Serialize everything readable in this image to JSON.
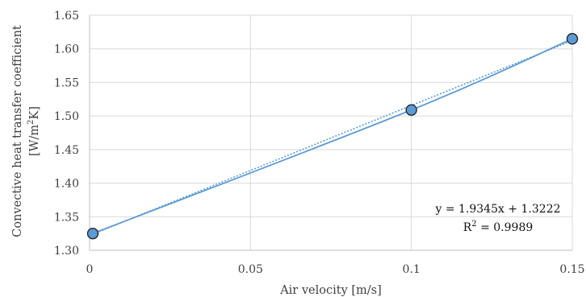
{
  "chart_data": {
    "type": "scatter",
    "series": [
      {
        "x": [
          0.001,
          0.1,
          0.15
        ],
        "y": [
          1.325,
          1.509,
          1.615
        ],
        "line": "smooth",
        "marker": "circle",
        "color": "#5b9bd5",
        "marker_edge_color": "#1f1f1f"
      }
    ],
    "trendline": {
      "type": "linear",
      "style": "dotted",
      "slope": 1.9345,
      "intercept": 1.3222,
      "equation_label": "y = 1.9345x + 1.3222",
      "r2_prefix": "R",
      "r2_sup": "2",
      "r2_suffix": " = 0.9989"
    },
    "xlabel": "Air velocity [m/s]",
    "ylabel_line1": "Convective heat transfer coefficient",
    "ylabel_line2_prefix": "[W/m",
    "ylabel_line2_sup": "2",
    "ylabel_line2_suffix": "K]",
    "xlim": [
      0,
      0.15
    ],
    "ylim": [
      1.3,
      1.65
    ],
    "x_ticks": [
      0,
      0.05,
      0.1,
      0.15
    ],
    "x_tick_labels": [
      "0",
      "0.05",
      "0.1",
      "0.15"
    ],
    "y_ticks": [
      1.3,
      1.35,
      1.4,
      1.45,
      1.5,
      1.55,
      1.6,
      1.65
    ],
    "y_tick_labels": [
      "1.30",
      "1.35",
      "1.40",
      "1.45",
      "1.50",
      "1.55",
      "1.60",
      "1.65"
    ],
    "grid": true,
    "grid_color": "#d9d9d9",
    "axis_color": "#bfbfbf",
    "legend": "none"
  }
}
